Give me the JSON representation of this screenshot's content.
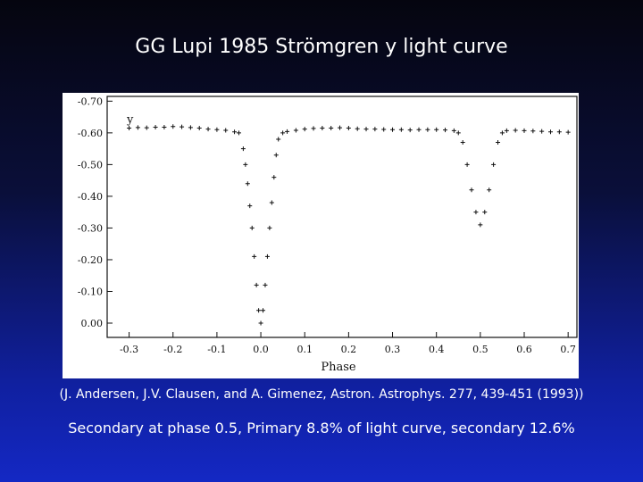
{
  "slide": {
    "title": "GG Lupi 1985 Strömgren y light curve",
    "citation": "(J. Andersen, J.V. Clausen, and A. Gimenez, Astron. Astrophys. 277, 439-451 (1993))",
    "caption": "Secondary at phase 0.5, Primary 8.8% of light curve, secondary 12.6%"
  },
  "chart_data": {
    "type": "scatter",
    "xlabel": "Phase",
    "ylabel": "y",
    "xlim": [
      -0.35,
      0.72
    ],
    "ylim": [
      -0.715,
      0.045
    ],
    "y_inverted": true,
    "x_ticks": [
      "-0.3",
      "-0.2",
      "-0.1",
      "0.0",
      "0.1",
      "0.2",
      "0.3",
      "0.4",
      "0.5",
      "0.6",
      "0.7"
    ],
    "y_ticks": [
      "-0.70",
      "-0.60",
      "-0.50",
      "-0.40",
      "-0.30",
      "-0.20",
      "-0.10",
      "0.00"
    ],
    "grid": false,
    "series": [
      {
        "marker": "+",
        "x": [
          -0.3,
          -0.28,
          -0.26,
          -0.24,
          -0.22,
          -0.2,
          -0.18,
          -0.16,
          -0.14,
          -0.12,
          -0.1,
          -0.08,
          -0.06,
          -0.05,
          -0.04,
          -0.035,
          -0.03,
          -0.025,
          -0.02,
          -0.015,
          -0.01,
          -0.005,
          0.0,
          0.005,
          0.01,
          0.015,
          0.02,
          0.025,
          0.03,
          0.035,
          0.04,
          0.05,
          0.06,
          0.08,
          0.1,
          0.12,
          0.14,
          0.16,
          0.18,
          0.2,
          0.22,
          0.24,
          0.26,
          0.28,
          0.3,
          0.32,
          0.34,
          0.36,
          0.38,
          0.4,
          0.42,
          0.44,
          0.45,
          0.46,
          0.47,
          0.48,
          0.49,
          0.5,
          0.51,
          0.52,
          0.53,
          0.54,
          0.55,
          0.56,
          0.58,
          0.6,
          0.62,
          0.64,
          0.66,
          0.68,
          0.7
        ],
        "y": [
          -0.615,
          -0.617,
          -0.616,
          -0.618,
          -0.618,
          -0.62,
          -0.619,
          -0.617,
          -0.615,
          -0.612,
          -0.61,
          -0.608,
          -0.603,
          -0.6,
          -0.55,
          -0.5,
          -0.44,
          -0.37,
          -0.3,
          -0.21,
          -0.12,
          -0.04,
          0.0,
          -0.04,
          -0.12,
          -0.21,
          -0.3,
          -0.38,
          -0.46,
          -0.53,
          -0.58,
          -0.6,
          -0.604,
          -0.608,
          -0.612,
          -0.614,
          -0.615,
          -0.615,
          -0.616,
          -0.615,
          -0.613,
          -0.612,
          -0.612,
          -0.611,
          -0.61,
          -0.61,
          -0.609,
          -0.61,
          -0.61,
          -0.61,
          -0.609,
          -0.607,
          -0.6,
          -0.57,
          -0.5,
          -0.42,
          -0.35,
          -0.31,
          -0.35,
          -0.42,
          -0.5,
          -0.57,
          -0.6,
          -0.607,
          -0.608,
          -0.607,
          -0.606,
          -0.605,
          -0.603,
          -0.603,
          -0.602
        ]
      }
    ]
  }
}
